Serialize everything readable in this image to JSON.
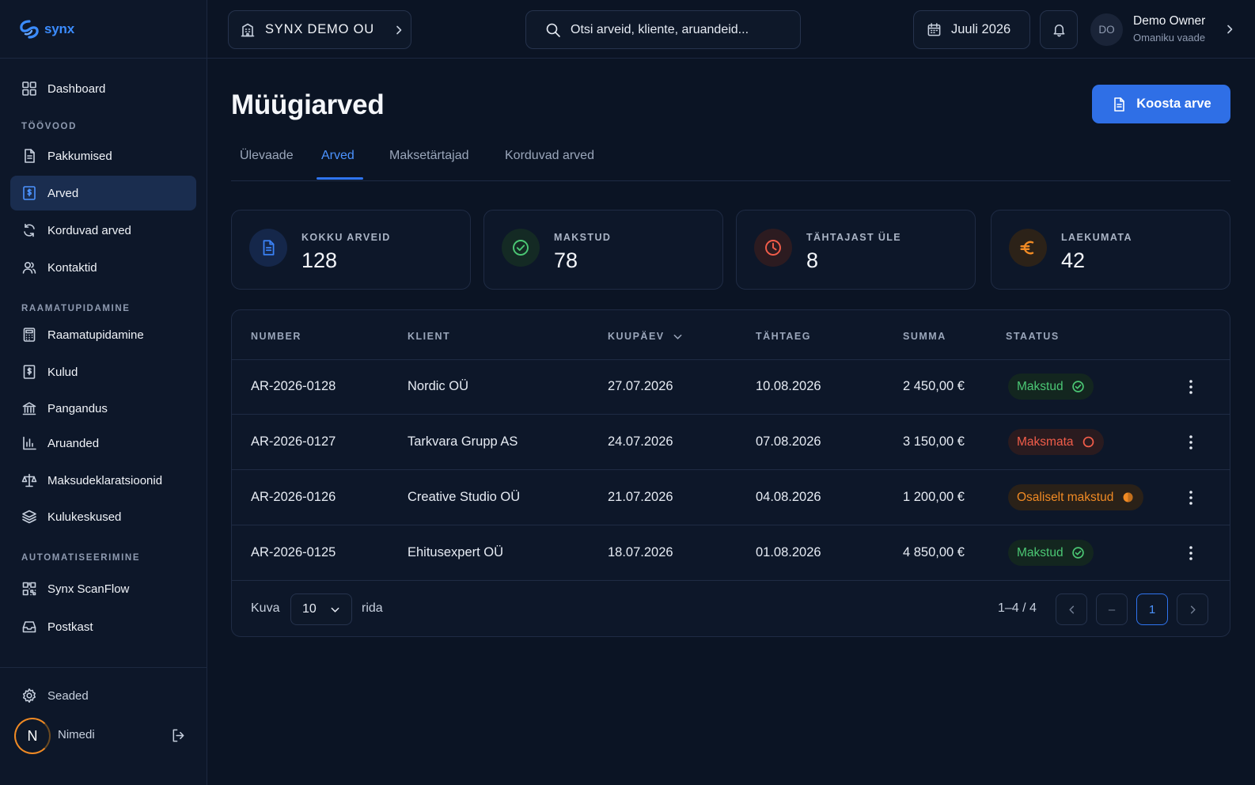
{
  "brand": {
    "name": "synx"
  },
  "sidebar": {
    "dashboard": "Dashboard",
    "sections": [
      "TÖÖVOOD",
      "RAAMATUPIDAMINE",
      "AUTOMATISEERIMINE"
    ],
    "workflow_items": [
      "Pakkumised",
      "Arved",
      "Korduvad arved",
      "Kontaktid"
    ],
    "accounting_items": [
      "Raamatupidamine",
      "Kulud",
      "Pangandus",
      "Aruanded",
      "Maksudeklaratsioonid",
      "Kulukeskused"
    ],
    "automation_items": [
      "Synx ScanFlow",
      "Postkast"
    ],
    "settings": "Seaded",
    "user_initial": "N",
    "user_name": "Nimedi"
  },
  "topbar": {
    "company": "SYNX DEMO OU",
    "search_placeholder": "Otsi arveid, kliente, aruandeid...",
    "period": "Juuli 2026",
    "user_initials": "DO",
    "user_name": "Demo Owner",
    "user_role": "Omaniku vaade"
  },
  "page": {
    "title": "Müügiarved",
    "create_button": "Koosta arve",
    "tabs": [
      "Ülevaade",
      "Arved",
      "Maksetärtajad",
      "Korduvad arved"
    ],
    "active_tab": "Arved"
  },
  "stats": [
    {
      "label": "KOKKU ARVEID",
      "value": "128",
      "icon": "document-icon",
      "color": "#3b82f6"
    },
    {
      "label": "MAKSTUD",
      "value": "78",
      "icon": "check-circle-icon",
      "color": "#4bc774"
    },
    {
      "label": "TÄHTAJAST ÜLE",
      "value": "8",
      "icon": "clock-icon",
      "color": "#f25d4a"
    },
    {
      "label": "LAEKUMATA",
      "value": "42",
      "icon": "euro-icon",
      "color": "#f08a24"
    }
  ],
  "table": {
    "columns": [
      "NUMBER",
      "KLIENT",
      "KUUPÄEV",
      "TÄHTAEG",
      "SUMMA",
      "STAATUS"
    ],
    "rows": [
      {
        "number": "AR-2026-0128",
        "client": "Nordic OÜ",
        "date": "27.07.2026",
        "due": "10.08.2026",
        "amount": "2 450,00 €",
        "status": "Makstud"
      },
      {
        "number": "AR-2026-0127",
        "client": "Tarkvara Grupp AS",
        "date": "24.07.2026",
        "due": "07.08.2026",
        "amount": "3 150,00 €",
        "status": "Maksmata"
      },
      {
        "number": "AR-2026-0126",
        "client": "Creative Studio OÜ",
        "date": "21.07.2026",
        "due": "04.08.2026",
        "amount": "1 200,00 €",
        "status": "Osaliselt makstud"
      },
      {
        "number": "AR-2026-0125",
        "client": "Ehitusexpert OÜ",
        "date": "18.07.2026",
        "due": "01.08.2026",
        "amount": "4 850,00 €",
        "status": "Makstud"
      }
    ]
  },
  "footer": {
    "show_label": "Kuva",
    "per_page": "10",
    "rows_label": "rida",
    "range": "1–4 / 4",
    "ellipsis": "–",
    "current_page": "1"
  },
  "colors": {
    "accent": "#2f6fe6",
    "paid": "#4bc774",
    "unpaid": "#f25d4a",
    "partial": "#f08a24"
  }
}
